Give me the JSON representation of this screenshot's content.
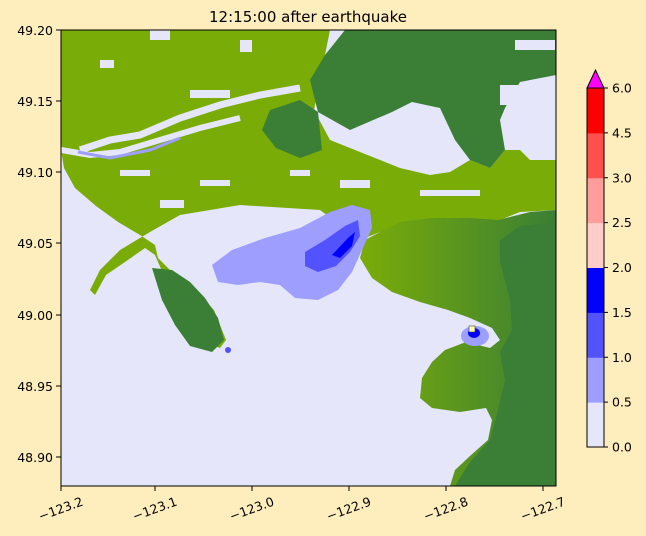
{
  "chart_data": {
    "type": "heatmap",
    "title": "12:15:00 after earthquake",
    "xlabel": "",
    "ylabel": "",
    "xlim": [
      -123.2,
      -122.69
    ],
    "ylim": [
      48.88,
      49.2
    ],
    "x_ticks": [
      -123.2,
      -123.1,
      -123.0,
      -122.9,
      -122.8,
      -122.7
    ],
    "x_tick_labels": [
      "−123.2",
      "−123.1",
      "−123.0",
      "−122.9",
      "−122.8",
      "−122.7"
    ],
    "y_ticks": [
      48.9,
      48.95,
      49.0,
      49.05,
      49.1,
      49.15,
      49.2
    ],
    "y_tick_labels": [
      "48.90",
      "48.95",
      "49.00",
      "49.05",
      "49.10",
      "49.15",
      "49.20"
    ],
    "colorbar": {
      "levels": [
        0.0,
        0.5,
        1.0,
        1.5,
        2.0,
        2.5,
        3.0,
        4.5,
        6.0
      ],
      "labels": [
        "0.0",
        "0.5",
        "1.0",
        "1.5",
        "2.0",
        "2.5",
        "3.0",
        "4.5",
        "6.0"
      ],
      "colors": [
        "#E6E6FA",
        "#9E9EFF",
        "#5252FF",
        "#0000FF",
        "#FFCCCC",
        "#FF9C9C",
        "#FF5050",
        "#FF0000"
      ],
      "extend_color": "#FF00FF"
    },
    "colors": {
      "water": "#E6E6FA",
      "land_low": "#7AAC08",
      "land_high": "#3A7F35",
      "background": "#FEEDBD"
    }
  }
}
